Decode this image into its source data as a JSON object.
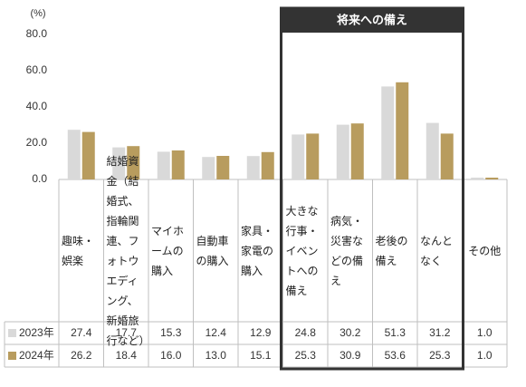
{
  "chart_data": {
    "type": "bar",
    "unit_label": "(%)",
    "annotation": "将来への備え",
    "categories": [
      "趣味・娯楽",
      "結婚資金（結婚式、指輪関連、フォトウエディング、新婚旅行など）",
      "マイホームの購入",
      "自動車の購入",
      "家具・家電の購入",
      "大きな行事・イベントへの備え",
      "病気・災害などの備え",
      "老後の備え",
      "なんとなく",
      "その他"
    ],
    "series": [
      {
        "name": "2023年",
        "color": "#d9d9d9",
        "values": [
          27.4,
          17.7,
          15.3,
          12.4,
          12.9,
          24.8,
          30.2,
          51.3,
          31.2,
          1.0
        ],
        "value_labels": [
          "27.4",
          "17.7",
          "15.3",
          "12.4",
          "12.9",
          "24.8",
          "30.2",
          "51.3",
          "31.2",
          "1.0"
        ]
      },
      {
        "name": "2024年",
        "color": "#b89c5e",
        "values": [
          26.2,
          18.4,
          16.0,
          13.0,
          15.1,
          25.3,
          30.9,
          53.6,
          25.3,
          1.0
        ],
        "value_labels": [
          "26.2",
          "18.4",
          "16.0",
          "13.0",
          "15.1",
          "25.3",
          "30.9",
          "53.6",
          "25.3",
          "1.0"
        ]
      }
    ],
    "ylim": [
      0,
      80
    ],
    "yticks": [
      {
        "value": 0,
        "label": "0.0"
      },
      {
        "value": 20,
        "label": "20.0"
      },
      {
        "value": 40,
        "label": "40.0"
      },
      {
        "value": 60,
        "label": "60.0"
      },
      {
        "value": 80,
        "label": "80.0"
      }
    ],
    "grid": false
  }
}
